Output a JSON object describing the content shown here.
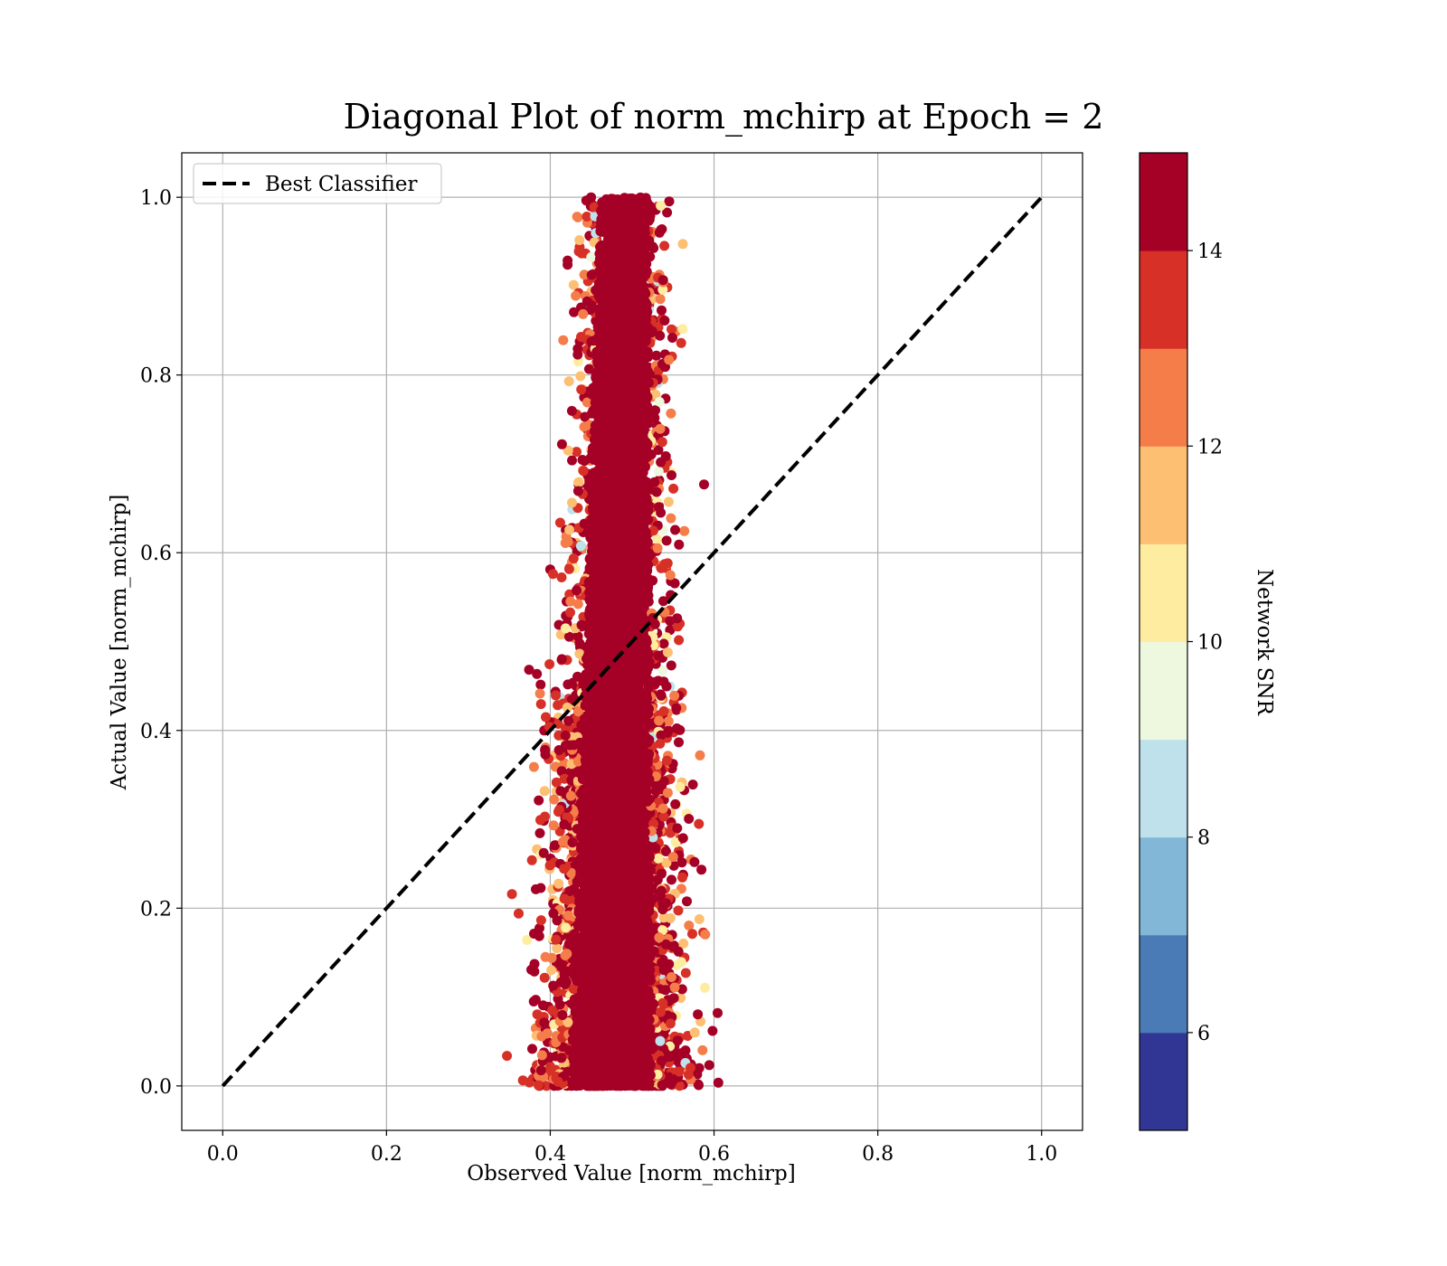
{
  "chart_data": {
    "type": "scatter",
    "title": "Diagonal Plot of norm_mchirp at Epoch = 2",
    "xlabel": "Observed Value [norm_mchirp]",
    "ylabel": "Actual Value [norm_mchirp]",
    "xlim": [
      -0.05,
      1.05
    ],
    "ylim": [
      -0.05,
      1.05
    ],
    "grid": true,
    "x_ticks": [
      0.0,
      0.2,
      0.4,
      0.6,
      0.8,
      1.0
    ],
    "x_tick_labels": [
      "0.0",
      "0.2",
      "0.4",
      "0.6",
      "0.8",
      "1.0"
    ],
    "y_ticks": [
      0.0,
      0.2,
      0.4,
      0.6,
      0.8,
      1.0
    ],
    "y_tick_labels": [
      "0.0",
      "0.2",
      "0.4",
      "0.6",
      "0.8",
      "1.0"
    ],
    "legend": {
      "placement": "upper-left",
      "entries": [
        {
          "label": "Best Classifier",
          "style": "dashed",
          "color": "#000000"
        }
      ]
    },
    "reference_line": {
      "name": "Best Classifier",
      "x": [
        0.0,
        1.0
      ],
      "y": [
        0.0,
        1.0
      ]
    },
    "scatter_description": {
      "x_center": 0.48,
      "x_spread_low_y": 0.038,
      "x_spread_high_y": 0.022,
      "x_center_low_y": 0.475,
      "x_center_high_y": 0.49,
      "y_range": [
        0.0,
        1.0
      ],
      "dominant_snr": 15,
      "approx_points_rendered": 7000
    },
    "colorbar": {
      "label": "Network SNR",
      "range": [
        5,
        15
      ],
      "ticks": [
        6,
        8,
        10,
        12,
        14
      ],
      "tick_labels": [
        "6",
        "8",
        "10",
        "12",
        "14"
      ],
      "bins": [
        {
          "from": 5,
          "to": 6,
          "color": "#313695"
        },
        {
          "from": 6,
          "to": 7,
          "color": "#4a7bb7"
        },
        {
          "from": 7,
          "to": 8,
          "color": "#82b7d8"
        },
        {
          "from": 8,
          "to": 9,
          "color": "#bfe1ec"
        },
        {
          "from": 9,
          "to": 10,
          "color": "#eef8df"
        },
        {
          "from": 10,
          "to": 11,
          "color": "#feeda1"
        },
        {
          "from": 11,
          "to": 12,
          "color": "#fdbf71"
        },
        {
          "from": 12,
          "to": 13,
          "color": "#f57d4a"
        },
        {
          "from": 13,
          "to": 14,
          "color": "#d73027"
        },
        {
          "from": 14,
          "to": 15,
          "color": "#a50026"
        }
      ]
    }
  }
}
